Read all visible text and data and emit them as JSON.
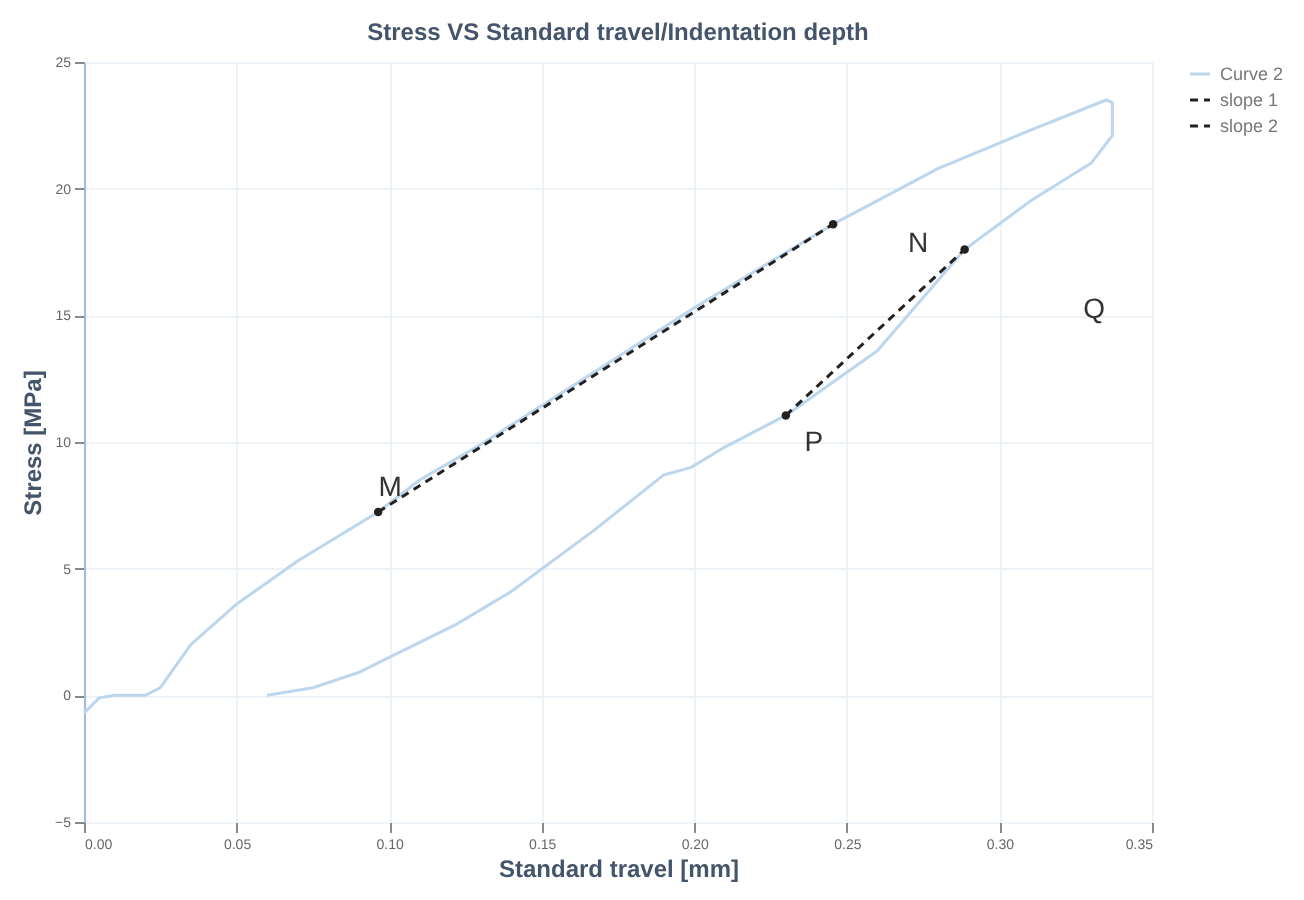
{
  "chart_data": {
    "type": "line",
    "title": "Stress VS Standard travel/Indentation depth",
    "xlabel": "Standard travel [mm]",
    "ylabel": "Stress [MPa]",
    "xlim": [
      0,
      0.35
    ],
    "xticks": [
      {
        "value": 0,
        "label": "0.00"
      },
      0.05,
      {
        "value": 0.1,
        "label": "0.10"
      },
      0.15,
      {
        "value": 0.2,
        "label": "0.20"
      },
      0.25,
      {
        "value": 0.3,
        "label": "0.30"
      },
      0.35
    ],
    "ylim": [
      -5,
      25
    ],
    "yticks": [
      -5,
      0,
      5,
      10,
      15,
      20,
      25
    ],
    "grid": true,
    "legend": "right",
    "series": [
      {
        "name": "Curve 2",
        "color": "#bcd6ee",
        "line_style": "solid",
        "marker": "none",
        "x": [
          0,
          0.005,
          0.01,
          0.02,
          0.025,
          0.035,
          0.05,
          0.07,
          0.0964,
          0.11,
          0.13,
          0.16,
          0.2,
          0.2455,
          0.28,
          0.31,
          0.335,
          0.337,
          0.337,
          0.33,
          0.31,
          0.2886,
          0.26,
          0.23,
          0.21,
          0.199,
          0.19,
          0.167,
          0.14,
          0.122,
          0.1,
          0.09,
          0.075,
          0.06
        ],
        "values": [
          -0.7,
          -0.1,
          0,
          0,
          0.3,
          2.0,
          3.6,
          5.3,
          7.24,
          8.5,
          9.9,
          12.2,
          15.3,
          18.6,
          20.8,
          22.3,
          23.5,
          23.4,
          22.1,
          21,
          19.5,
          17.6,
          13.6,
          11.05,
          9.8,
          9.0,
          8.7,
          6.5,
          4.1,
          2.8,
          1.5,
          0.9,
          0.3,
          0
        ]
      },
      {
        "name": "slope 1",
        "color": "#222222",
        "line_style": "dashed",
        "marker": "circle",
        "x": [
          0.0964,
          0.2455
        ],
        "values": [
          7.24,
          18.6
        ]
      },
      {
        "name": "slope 2",
        "color": "#222222",
        "line_style": "dashed",
        "marker": "circle",
        "x": [
          0.23,
          0.2886
        ],
        "values": [
          11.05,
          17.6
        ]
      }
    ],
    "annotations": [
      {
        "text": "M",
        "x": 0.0964,
        "y": 7.24
      },
      "N",
      {
        "text": "P",
        "x": 0.23,
        "y": 11.05
      },
      "Q"
    ]
  }
}
